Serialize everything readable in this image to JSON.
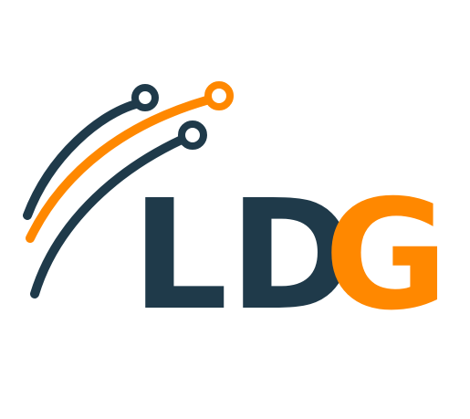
{
  "logo": {
    "letters": [
      "L",
      "D",
      "G"
    ],
    "colors": {
      "navy": "#1f3a4a",
      "orange": "#ff8800",
      "background": "#ffffff"
    }
  }
}
